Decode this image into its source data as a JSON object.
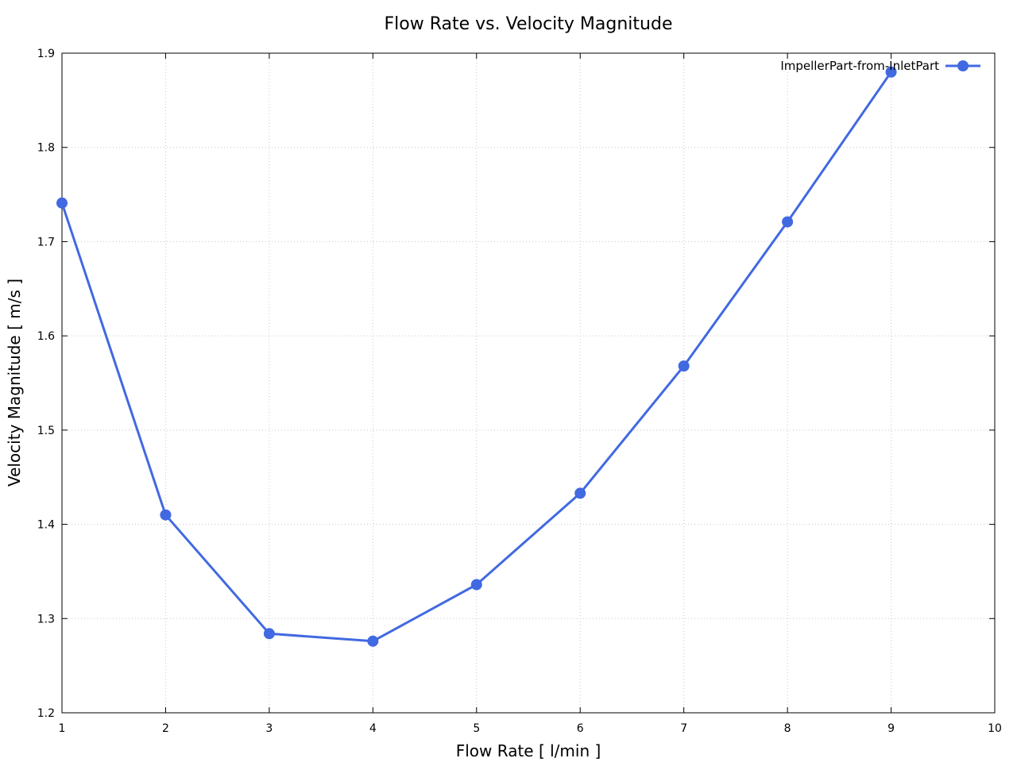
{
  "chart_data": {
    "type": "line",
    "title": "Flow Rate vs. Velocity Magnitude",
    "xlabel": "Flow Rate [ l/min ]",
    "ylabel": "Velocity Magnitude [ m/s ]",
    "xlim": [
      1,
      10
    ],
    "ylim": [
      1.2,
      1.9
    ],
    "xticks": [
      "1",
      "2",
      "3",
      "4",
      "5",
      "6",
      "7",
      "8",
      "9",
      "10"
    ],
    "yticks": [
      "1.2",
      "1.3",
      "1.4",
      "1.5",
      "1.6",
      "1.7",
      "1.8",
      "1.9"
    ],
    "grid": true,
    "legend_position": "top-right",
    "series": [
      {
        "name": "ImpellerPart-from-InletPart",
        "color": "#4169e1",
        "marker": "circle",
        "x": [
          1,
          2,
          3,
          4,
          5,
          6,
          7,
          8,
          9
        ],
        "y": [
          1.741,
          1.41,
          1.284,
          1.276,
          1.336,
          1.433,
          1.568,
          1.721,
          1.88
        ]
      }
    ]
  }
}
